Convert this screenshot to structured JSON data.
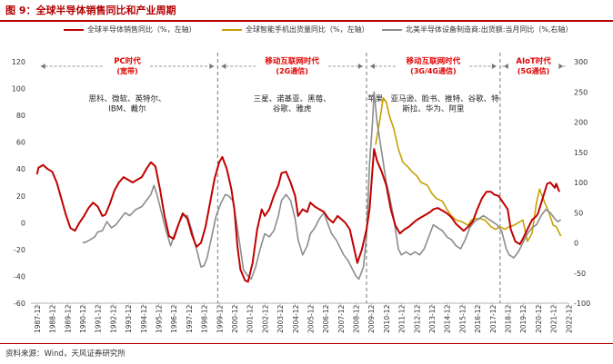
{
  "figure": {
    "title": "图 9：全球半导体销售同比和产业周期",
    "source": "资料来源：Wind，天风证券研究所"
  },
  "colors": {
    "red": "#c00000",
    "gold": "#c8a000",
    "gray": "#8c8c8c",
    "era_label": "#e00000",
    "divider": "#777777"
  },
  "chart_data": {
    "type": "line",
    "x_labels": [
      "1987-12",
      "1988-12",
      "1989-12",
      "1990-12",
      "1991-12",
      "1992-12",
      "1993-12",
      "1994-12",
      "1995-12",
      "1996-12",
      "1997-12",
      "1998-12",
      "1999-12",
      "2000-12",
      "2001-12",
      "2002-12",
      "2003-12",
      "2004-12",
      "2005-12",
      "2006-12",
      "2007-12",
      "2008-12",
      "2009-12",
      "2010-12",
      "2011-12",
      "2012-12",
      "2013-12",
      "2014-12",
      "2015-12",
      "2016-12",
      "2017-12",
      "2018-12",
      "2019-12",
      "2020-12",
      "2021-12",
      "2022-12"
    ],
    "x_range": [
      1987.5,
      2022.9
    ],
    "y_left": {
      "range": [
        -60,
        120
      ],
      "ticks": [
        -60,
        -40,
        -20,
        0,
        20,
        40,
        60,
        80,
        100,
        120
      ],
      "label": "%，左轴"
    },
    "y_right": {
      "range": [
        -100,
        300
      ],
      "ticks": [
        -100,
        -50,
        0,
        50,
        100,
        150,
        200,
        250,
        300
      ],
      "label": "%，右轴"
    },
    "series": [
      {
        "name": "全球半导体销售同比（%，左轴）",
        "axis": "left",
        "color": "#c00000",
        "points": [
          [
            1987.9,
            36
          ],
          [
            1988.0,
            41
          ],
          [
            1988.3,
            43
          ],
          [
            1988.6,
            40
          ],
          [
            1988.9,
            38
          ],
          [
            1989.2,
            30
          ],
          [
            1989.5,
            18
          ],
          [
            1989.8,
            6
          ],
          [
            1990.1,
            -4
          ],
          [
            1990.4,
            -6
          ],
          [
            1990.7,
            0
          ],
          [
            1991.0,
            5
          ],
          [
            1991.3,
            11
          ],
          [
            1991.6,
            15
          ],
          [
            1991.9,
            12
          ],
          [
            1992.2,
            5
          ],
          [
            1992.4,
            6
          ],
          [
            1992.7,
            14
          ],
          [
            1993.0,
            24
          ],
          [
            1993.3,
            30
          ],
          [
            1993.6,
            34
          ],
          [
            1993.9,
            32
          ],
          [
            1994.2,
            30
          ],
          [
            1994.5,
            32
          ],
          [
            1994.8,
            34
          ],
          [
            1995.1,
            40
          ],
          [
            1995.4,
            45
          ],
          [
            1995.7,
            42
          ],
          [
            1996.0,
            25
          ],
          [
            1996.3,
            5
          ],
          [
            1996.6,
            -10
          ],
          [
            1996.9,
            -12
          ],
          [
            1997.2,
            -2
          ],
          [
            1997.5,
            7
          ],
          [
            1997.8,
            3
          ],
          [
            1998.1,
            -9
          ],
          [
            1998.4,
            -18
          ],
          [
            1998.7,
            -15
          ],
          [
            1999.0,
            -3
          ],
          [
            1999.3,
            15
          ],
          [
            1999.6,
            33
          ],
          [
            1999.9,
            45
          ],
          [
            2000.1,
            49
          ],
          [
            2000.4,
            40
          ],
          [
            2000.7,
            25
          ],
          [
            2000.9,
            10
          ],
          [
            2001.1,
            -18
          ],
          [
            2001.3,
            -35
          ],
          [
            2001.6,
            -43
          ],
          [
            2001.8,
            -44
          ],
          [
            2002.1,
            -30
          ],
          [
            2002.4,
            -5
          ],
          [
            2002.7,
            10
          ],
          [
            2002.9,
            5
          ],
          [
            2003.2,
            10
          ],
          [
            2003.5,
            20
          ],
          [
            2003.8,
            28
          ],
          [
            2004.0,
            37
          ],
          [
            2004.3,
            38
          ],
          [
            2004.6,
            30
          ],
          [
            2004.9,
            20
          ],
          [
            2005.1,
            5
          ],
          [
            2005.4,
            10
          ],
          [
            2005.7,
            8
          ],
          [
            2005.9,
            15
          ],
          [
            2006.2,
            12
          ],
          [
            2006.5,
            10
          ],
          [
            2006.8,
            8
          ],
          [
            2007.1,
            3
          ],
          [
            2007.4,
            0
          ],
          [
            2007.7,
            5
          ],
          [
            2007.9,
            3
          ],
          [
            2008.2,
            0
          ],
          [
            2008.5,
            -5
          ],
          [
            2008.8,
            -20
          ],
          [
            2009.0,
            -30
          ],
          [
            2009.3,
            -20
          ],
          [
            2009.6,
            -5
          ],
          [
            2009.8,
            10
          ],
          [
            2010.0,
            40
          ],
          [
            2010.1,
            55
          ],
          [
            2010.3,
            46
          ],
          [
            2010.6,
            38
          ],
          [
            2010.9,
            28
          ],
          [
            2011.2,
            10
          ],
          [
            2011.5,
            -2
          ],
          [
            2011.8,
            -8
          ],
          [
            2012.1,
            -5
          ],
          [
            2012.4,
            -3
          ],
          [
            2012.7,
            0
          ],
          [
            2012.9,
            2
          ],
          [
            2013.2,
            4
          ],
          [
            2013.5,
            6
          ],
          [
            2013.8,
            8
          ],
          [
            2014.0,
            10
          ],
          [
            2014.3,
            11
          ],
          [
            2014.6,
            9
          ],
          [
            2014.9,
            7
          ],
          [
            2015.2,
            4
          ],
          [
            2015.5,
            -1
          ],
          [
            2015.8,
            -4
          ],
          [
            2016.0,
            -6
          ],
          [
            2016.3,
            -3
          ],
          [
            2016.6,
            1
          ],
          [
            2016.9,
            10
          ],
          [
            2017.2,
            18
          ],
          [
            2017.5,
            23
          ],
          [
            2017.8,
            23
          ],
          [
            2018.0,
            21
          ],
          [
            2018.3,
            20
          ],
          [
            2018.6,
            15
          ],
          [
            2018.9,
            10
          ],
          [
            2019.1,
            -5
          ],
          [
            2019.4,
            -14
          ],
          [
            2019.7,
            -16
          ],
          [
            2019.9,
            -12
          ],
          [
            2020.2,
            -5
          ],
          [
            2020.5,
            2
          ],
          [
            2020.8,
            5
          ],
          [
            2020.9,
            7
          ],
          [
            2021.2,
            18
          ],
          [
            2021.5,
            29
          ],
          [
            2021.7,
            30
          ],
          [
            2022.0,
            26
          ],
          [
            2022.1,
            29
          ],
          [
            2022.3,
            23
          ]
        ]
      },
      {
        "name": "全球智能手机出货量同比（%，左轴）",
        "axis": "left",
        "color": "#c8a000",
        "points": [
          [
            2010.2,
            58
          ],
          [
            2010.5,
            78
          ],
          [
            2010.7,
            93
          ],
          [
            2010.9,
            90
          ],
          [
            2011.1,
            80
          ],
          [
            2011.4,
            70
          ],
          [
            2011.7,
            55
          ],
          [
            2012.0,
            45
          ],
          [
            2012.3,
            42
          ],
          [
            2012.6,
            38
          ],
          [
            2012.9,
            35
          ],
          [
            2013.2,
            30
          ],
          [
            2013.6,
            28
          ],
          [
            2013.9,
            22
          ],
          [
            2014.2,
            18
          ],
          [
            2014.6,
            16
          ],
          [
            2014.9,
            10
          ],
          [
            2015.2,
            5
          ],
          [
            2015.5,
            2
          ],
          [
            2015.8,
            1
          ],
          [
            2016.0,
            0
          ],
          [
            2016.3,
            -2
          ],
          [
            2016.5,
            2
          ],
          [
            2016.8,
            3
          ],
          [
            2017.1,
            3
          ],
          [
            2017.4,
            2
          ],
          [
            2017.8,
            -3
          ],
          [
            2018.1,
            -5
          ],
          [
            2018.4,
            -3
          ],
          [
            2018.7,
            -5
          ],
          [
            2019.0,
            -3
          ],
          [
            2019.3,
            -2
          ],
          [
            2019.6,
            0
          ],
          [
            2019.9,
            2
          ],
          [
            2020.2,
            -14
          ],
          [
            2020.5,
            -8
          ],
          [
            2020.8,
            15
          ],
          [
            2021.0,
            25
          ],
          [
            2021.3,
            16
          ],
          [
            2021.6,
            8
          ],
          [
            2021.9,
            -2
          ],
          [
            2022.1,
            -3
          ],
          [
            2022.4,
            -10
          ]
        ]
      },
      {
        "name": "北美半导体设备制造商:出货额:当月同比（%,右轴）",
        "axis": "right",
        "color": "#8c8c8c",
        "points": [
          [
            1990.9,
            0
          ],
          [
            1991.1,
            1
          ],
          [
            1991.4,
            5
          ],
          [
            1991.7,
            10
          ],
          [
            1991.9,
            18
          ],
          [
            1992.2,
            20
          ],
          [
            1992.5,
            35
          ],
          [
            1992.8,
            25
          ],
          [
            1993.1,
            30
          ],
          [
            1993.4,
            40
          ],
          [
            1993.7,
            50
          ],
          [
            1994.0,
            45
          ],
          [
            1994.4,
            55
          ],
          [
            1994.8,
            60
          ],
          [
            1995.1,
            70
          ],
          [
            1995.4,
            80
          ],
          [
            1995.6,
            95
          ],
          [
            1995.8,
            80
          ],
          [
            1996.1,
            50
          ],
          [
            1996.4,
            20
          ],
          [
            1996.7,
            -5
          ],
          [
            1996.9,
            10
          ],
          [
            1997.2,
            30
          ],
          [
            1997.5,
            45
          ],
          [
            1997.8,
            45
          ],
          [
            1998.1,
            20
          ],
          [
            1998.4,
            -10
          ],
          [
            1998.7,
            -40
          ],
          [
            1998.9,
            -38
          ],
          [
            1999.1,
            -25
          ],
          [
            1999.4,
            10
          ],
          [
            1999.7,
            45
          ],
          [
            2000.0,
            65
          ],
          [
            2000.3,
            80
          ],
          [
            2000.5,
            78
          ],
          [
            2000.8,
            70
          ],
          [
            2001.0,
            40
          ],
          [
            2001.3,
            -10
          ],
          [
            2001.5,
            -45
          ],
          [
            2001.8,
            -55
          ],
          [
            2002.0,
            -60
          ],
          [
            2002.3,
            -40
          ],
          [
            2002.6,
            -10
          ],
          [
            2002.9,
            15
          ],
          [
            2003.2,
            10
          ],
          [
            2003.5,
            20
          ],
          [
            2003.8,
            45
          ],
          [
            2004.0,
            70
          ],
          [
            2004.3,
            80
          ],
          [
            2004.6,
            70
          ],
          [
            2004.9,
            40
          ],
          [
            2005.1,
            5
          ],
          [
            2005.4,
            -20
          ],
          [
            2005.7,
            -5
          ],
          [
            2005.9,
            15
          ],
          [
            2006.2,
            25
          ],
          [
            2006.5,
            40
          ],
          [
            2006.8,
            50
          ],
          [
            2007.0,
            35
          ],
          [
            2007.3,
            15
          ],
          [
            2007.6,
            5
          ],
          [
            2007.9,
            -10
          ],
          [
            2008.1,
            -20
          ],
          [
            2008.4,
            -30
          ],
          [
            2008.7,
            -45
          ],
          [
            2008.9,
            -55
          ],
          [
            2009.1,
            -60
          ],
          [
            2009.4,
            -40
          ],
          [
            2009.6,
            10
          ],
          [
            2009.8,
            130
          ],
          [
            2010.0,
            200
          ],
          [
            2010.1,
            250
          ],
          [
            2010.3,
            200
          ],
          [
            2010.6,
            150
          ],
          [
            2010.9,
            100
          ],
          [
            2011.1,
            80
          ],
          [
            2011.4,
            40
          ],
          [
            2011.7,
            -10
          ],
          [
            2011.9,
            -20
          ],
          [
            2012.2,
            -15
          ],
          [
            2012.5,
            -20
          ],
          [
            2012.8,
            -15
          ],
          [
            2013.1,
            -20
          ],
          [
            2013.4,
            -10
          ],
          [
            2013.7,
            10
          ],
          [
            2014.0,
            30
          ],
          [
            2014.3,
            25
          ],
          [
            2014.6,
            20
          ],
          [
            2014.9,
            10
          ],
          [
            2015.2,
            5
          ],
          [
            2015.5,
            -5
          ],
          [
            2015.8,
            -10
          ],
          [
            2016.1,
            5
          ],
          [
            2016.4,
            25
          ],
          [
            2016.7,
            35
          ],
          [
            2017.0,
            40
          ],
          [
            2017.3,
            45
          ],
          [
            2017.6,
            40
          ],
          [
            2017.9,
            35
          ],
          [
            2018.2,
            30
          ],
          [
            2018.5,
            20
          ],
          [
            2018.8,
            -10
          ],
          [
            2019.0,
            -20
          ],
          [
            2019.3,
            -25
          ],
          [
            2019.6,
            -15
          ],
          [
            2019.9,
            0
          ],
          [
            2020.2,
            15
          ],
          [
            2020.5,
            25
          ],
          [
            2020.8,
            30
          ],
          [
            2021.1,
            45
          ],
          [
            2021.4,
            55
          ],
          [
            2021.7,
            50
          ],
          [
            2022.0,
            40
          ],
          [
            2022.2,
            35
          ],
          [
            2022.4,
            38
          ]
        ]
      }
    ],
    "eras": [
      {
        "name": "PC时代",
        "sub": "(宽带)",
        "start": 1987.9,
        "end": 1999.8,
        "companies": [
          "思科、微软、英特尔、",
          "IBM、戴尔"
        ]
      },
      {
        "name": "移动互联网时代",
        "sub": "(2G通信)",
        "start": 1999.8,
        "end": 2009.6,
        "companies": [
          "三星、诺基亚、黑莓、",
          "谷歌、雅虎"
        ]
      },
      {
        "name": "移动互联网时代",
        "sub": "(3G/4G通信)",
        "start": 2009.6,
        "end": 2018.4,
        "companies": [
          "苹果、亚马逊、脸书、推特、谷歌、特",
          "斯拉、华为、阿里"
        ]
      },
      {
        "name": "AIoT时代",
        "sub": "(5G通信)",
        "start": 2018.4,
        "end": 2022.8,
        "companies": []
      }
    ],
    "dividers": [
      1999.8,
      2009.6,
      2018.4
    ],
    "grid": false
  }
}
